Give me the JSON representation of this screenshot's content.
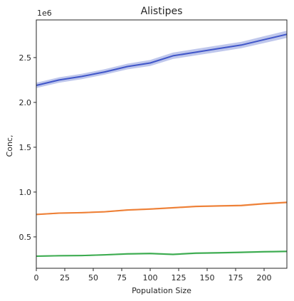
{
  "chart_data": {
    "type": "line",
    "title": "Alistipes",
    "xlabel": "Population Size",
    "ylabel": "Conc,",
    "y_offset_label": "1e6",
    "y_multiplier": 1000000,
    "xlim": [
      0,
      220
    ],
    "ylim": [
      150000,
      2920000
    ],
    "xticks": [
      0,
      25,
      50,
      75,
      100,
      125,
      150,
      175,
      200
    ],
    "xtick_labels": [
      "0",
      "25",
      "50",
      "75",
      "100",
      "125",
      "150",
      "175",
      "200"
    ],
    "yticks": [
      500000,
      1000000,
      1500000,
      2000000,
      2500000
    ],
    "ytick_labels": [
      "0.5",
      "1.0",
      "1.5",
      "2.0",
      "2.5"
    ],
    "grid": false,
    "legend": "none",
    "x": [
      0,
      20,
      40,
      60,
      80,
      100,
      120,
      140,
      160,
      180,
      200,
      220
    ],
    "series": [
      {
        "color": "#4056c9",
        "band_color": "#b4bde9",
        "values": [
          2190000,
          2250000,
          2290000,
          2340000,
          2400000,
          2440000,
          2520000,
          2560000,
          2600000,
          2640000,
          2700000,
          2760000
        ],
        "ci": [
          30000,
          30000,
          30000,
          30000,
          32000,
          34000,
          36000,
          36000,
          36000,
          36000,
          38000,
          40000
        ]
      },
      {
        "color": "#ee7f35",
        "band_color": "#f6c29c",
        "values": [
          750000,
          765000,
          770000,
          780000,
          800000,
          810000,
          825000,
          840000,
          845000,
          850000,
          870000,
          885000
        ],
        "ci": [
          8000,
          8000,
          8000,
          8000,
          9000,
          9000,
          9000,
          9000,
          9000,
          10000,
          10000,
          10000
        ]
      },
      {
        "color": "#3bab4f",
        "band_color": "#a9dcb2",
        "values": [
          285000,
          290000,
          292000,
          300000,
          310000,
          315000,
          305000,
          318000,
          322000,
          328000,
          334000,
          338000
        ],
        "ci": [
          8000,
          8000,
          8000,
          8000,
          10000,
          10000,
          10000,
          10000,
          10000,
          10000,
          10000,
          10000
        ]
      }
    ]
  }
}
